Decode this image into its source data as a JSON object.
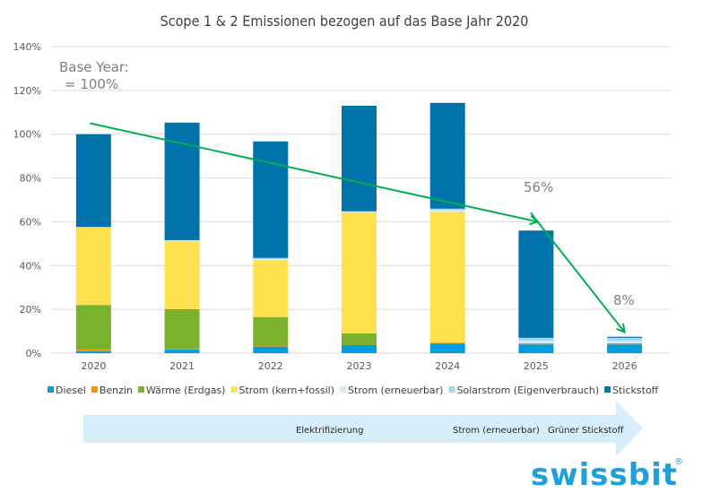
{
  "chart_data": {
    "type": "bar",
    "stacked": true,
    "title": "Scope 1 & 2 Emissionen bezogen auf das Base Jahr 2020",
    "xlabel": "",
    "ylabel": "",
    "ylim": [
      0,
      140
    ],
    "yticks": [
      0,
      20,
      40,
      60,
      80,
      100,
      120,
      140
    ],
    "ytick_labels": [
      "0%",
      "20%",
      "40%",
      "60%",
      "80%",
      "100%",
      "120%",
      "140%"
    ],
    "grid": true,
    "legend_position": "bottom",
    "categories": [
      "2020",
      "2021",
      "2022",
      "2023",
      "2024",
      "2025",
      "2026"
    ],
    "series": [
      {
        "name": "Diesel",
        "color": "#009ee0",
        "values": [
          0.9,
          1.6,
          3.0,
          3.7,
          4.3,
          4.0,
          4.0
        ]
      },
      {
        "name": "Benzin",
        "color": "#f39200",
        "values": [
          0.8,
          0.3,
          0.3,
          0.0,
          0.5,
          0.5,
          0.5
        ]
      },
      {
        "name": "Wärme (Erdgas)",
        "color": "#7ab22e",
        "values": [
          20.3,
          18.2,
          13.2,
          5.3,
          0.0,
          0.0,
          0.0
        ]
      },
      {
        "name": "Strom (kern+fossil)",
        "color": "#ffe14d",
        "values": [
          35.4,
          31.1,
          26.0,
          55.3,
          59.7,
          0.0,
          0.0
        ]
      },
      {
        "name": "Strom (erneuerbar)",
        "color": "#d4ecf8",
        "values": [
          0.2,
          0.4,
          0.5,
          0.3,
          0.8,
          1.2,
          1.2
        ]
      },
      {
        "name": "Solarstrom (Eigenverbrauch)",
        "color": "#a5d7f0",
        "values": [
          0.0,
          0.0,
          0.5,
          0.2,
          0.7,
          1.3,
          1.3
        ]
      },
      {
        "name": "Stickstoff",
        "color": "#0074aa",
        "values": [
          42.4,
          53.7,
          53.2,
          48.2,
          48.3,
          49.0,
          0.5
        ]
      }
    ],
    "totals": [
      100,
      105.3,
      96.7,
      113.0,
      114.3,
      56,
      7.5
    ],
    "annotations": [
      {
        "text_line1": "Base Year:",
        "text_line2": "= 100%",
        "near": "2020"
      },
      {
        "text": "56%",
        "near": "2025"
      },
      {
        "text": "8%",
        "near": "2026"
      }
    ],
    "trend_arrow": {
      "color": "#00b050",
      "points": [
        {
          "x": "2020",
          "y": 105
        },
        {
          "x": "2025",
          "y": 60
        },
        {
          "x": "2026",
          "y": 12
        }
      ]
    }
  },
  "roadmap": {
    "labels": [
      "Elektrifizierung",
      "Strom (erneuerbar)",
      "Grüner Stickstoff"
    ],
    "color": "#d6eef9"
  },
  "logo": {
    "text": "swissbit",
    "mark": "®"
  }
}
